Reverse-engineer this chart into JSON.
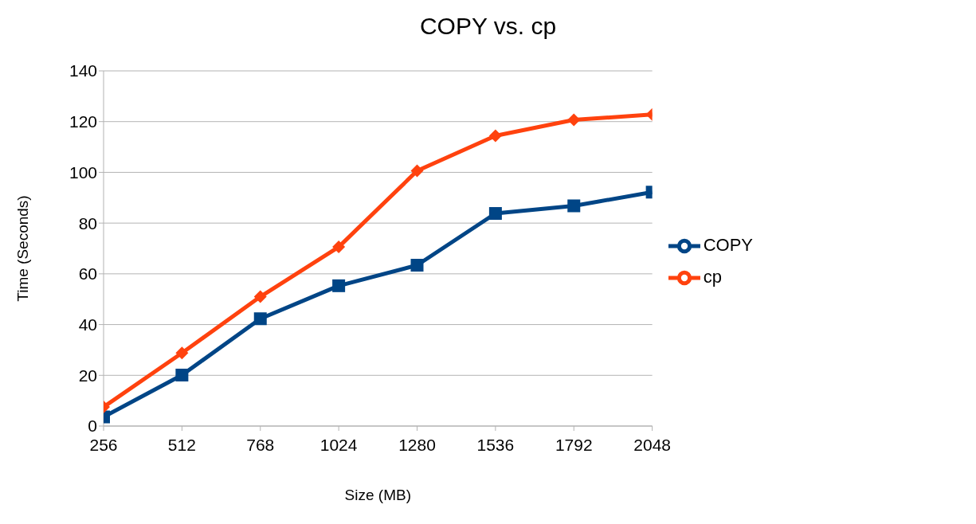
{
  "chart_data": {
    "type": "line",
    "title": "COPY vs. cp",
    "xlabel": "Size (MB)",
    "ylabel": "Time (Seconds)",
    "x": [
      256,
      512,
      768,
      1024,
      1280,
      1536,
      1792,
      2048
    ],
    "xlim": [
      256,
      2048
    ],
    "xticks": [
      256,
      512,
      768,
      1024,
      1280,
      1536,
      1792,
      2048
    ],
    "ylim": [
      0,
      140
    ],
    "yticks": [
      0,
      20,
      40,
      60,
      80,
      100,
      120,
      140
    ],
    "grid": "y",
    "legend": "right",
    "series": [
      {
        "name": "COPY",
        "color": "#004586",
        "marker": "square",
        "values": [
          3.6,
          20.1,
          42.3,
          55.3,
          63.4,
          83.8,
          86.8,
          92.2
        ]
      },
      {
        "name": "cp",
        "color": "#ff420e",
        "marker": "diamond",
        "values": [
          7.5,
          28.8,
          51,
          70.6,
          100.6,
          114.4,
          120.7,
          122.8
        ]
      }
    ]
  }
}
